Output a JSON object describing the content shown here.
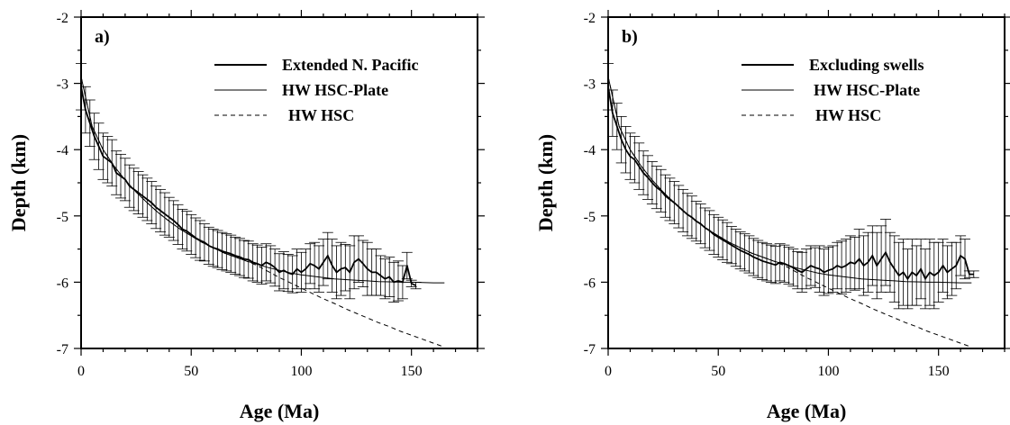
{
  "chart_data": [
    {
      "type": "line",
      "panel_label": "a)",
      "xlabel": "Age (Ma)",
      "ylabel": "Depth (km)",
      "xlim": [
        0,
        180
      ],
      "ylim": [
        -7,
        -2
      ],
      "x_ticks": [
        0,
        50,
        100,
        150
      ],
      "y_ticks": [
        -2,
        -3,
        -4,
        -5,
        -6,
        -7
      ],
      "legend_position": "top-right",
      "series": [
        {
          "name": "Extended N. Pacific",
          "style": "bold-solid-with-error-bars",
          "x": [
            0,
            2,
            4,
            6,
            8,
            10,
            12,
            14,
            16,
            18,
            20,
            22,
            24,
            26,
            28,
            30,
            32,
            34,
            36,
            38,
            40,
            42,
            44,
            46,
            48,
            50,
            52,
            54,
            56,
            58,
            60,
            62,
            64,
            66,
            68,
            70,
            72,
            74,
            76,
            78,
            80,
            82,
            84,
            86,
            88,
            90,
            92,
            94,
            96,
            98,
            100,
            102,
            104,
            106,
            108,
            110,
            112,
            114,
            116,
            118,
            120,
            122,
            124,
            126,
            128,
            130,
            132,
            134,
            136,
            138,
            140,
            142,
            144,
            146,
            148,
            150,
            152
          ],
          "y": [
            -3.05,
            -3.4,
            -3.6,
            -3.8,
            -3.95,
            -4.1,
            -4.15,
            -4.2,
            -4.35,
            -4.4,
            -4.45,
            -4.55,
            -4.6,
            -4.65,
            -4.7,
            -4.75,
            -4.8,
            -4.87,
            -4.92,
            -4.97,
            -5.02,
            -5.07,
            -5.13,
            -5.2,
            -5.23,
            -5.28,
            -5.33,
            -5.37,
            -5.4,
            -5.45,
            -5.48,
            -5.5,
            -5.53,
            -5.55,
            -5.57,
            -5.6,
            -5.62,
            -5.65,
            -5.66,
            -5.7,
            -5.72,
            -5.75,
            -5.7,
            -5.73,
            -5.78,
            -5.85,
            -5.82,
            -5.86,
            -5.88,
            -5.8,
            -5.85,
            -5.8,
            -5.72,
            -5.75,
            -5.8,
            -5.7,
            -5.6,
            -5.75,
            -5.85,
            -5.8,
            -5.78,
            -5.85,
            -5.7,
            -5.65,
            -5.72,
            -5.8,
            -5.85,
            -5.85,
            -5.9,
            -5.95,
            -5.92,
            -6.0,
            -5.98,
            -6.0,
            -5.75,
            -6.02,
            -6.05
          ],
          "error": [
            0.35,
            0.35,
            0.35,
            0.35,
            0.35,
            0.35,
            0.35,
            0.35,
            0.33,
            0.33,
            0.32,
            0.32,
            0.32,
            0.32,
            0.32,
            0.32,
            0.32,
            0.32,
            0.32,
            0.32,
            0.3,
            0.3,
            0.3,
            0.3,
            0.3,
            0.3,
            0.3,
            0.3,
            0.28,
            0.28,
            0.28,
            0.28,
            0.28,
            0.28,
            0.28,
            0.28,
            0.28,
            0.28,
            0.28,
            0.28,
            0.28,
            0.28,
            0.28,
            0.28,
            0.28,
            0.28,
            0.28,
            0.28,
            0.28,
            0.3,
            0.3,
            0.3,
            0.3,
            0.35,
            0.35,
            0.35,
            0.35,
            0.4,
            0.4,
            0.4,
            0.35,
            0.4,
            0.4,
            0.35,
            0.35,
            0.4,
            0.35,
            0.35,
            0.3,
            0.3,
            0.3,
            0.3,
            0.3,
            0.25,
            0.2,
            0.05,
            0.05
          ]
        },
        {
          "name": "HW HSC-Plate",
          "style": "thin-solid",
          "x": [
            0,
            5,
            10,
            15,
            20,
            25,
            30,
            35,
            40,
            45,
            50,
            55,
            60,
            65,
            70,
            75,
            80,
            85,
            90,
            95,
            100,
            105,
            110,
            115,
            120,
            125,
            130,
            135,
            140,
            145,
            150,
            155,
            160,
            165
          ],
          "y": [
            -2.9,
            -3.65,
            -4.0,
            -4.25,
            -4.46,
            -4.64,
            -4.8,
            -4.95,
            -5.08,
            -5.2,
            -5.3,
            -5.4,
            -5.48,
            -5.56,
            -5.62,
            -5.68,
            -5.73,
            -5.78,
            -5.82,
            -5.86,
            -5.89,
            -5.91,
            -5.93,
            -5.95,
            -5.96,
            -5.97,
            -5.98,
            -5.99,
            -5.995,
            -6.0,
            -6.0,
            -6.005,
            -6.01,
            -6.01
          ]
        },
        {
          "name": "HW HSC",
          "style": "dashed",
          "x": [
            0,
            5,
            10,
            15,
            20,
            25,
            30,
            35,
            40,
            45,
            50,
            55,
            60,
            65,
            70,
            75,
            80,
            85,
            90,
            95,
            100,
            105,
            110,
            115,
            120,
            125,
            130,
            135,
            140,
            145,
            150,
            155,
            160,
            165
          ],
          "y": [
            -2.9,
            -3.65,
            -4.0,
            -4.25,
            -4.46,
            -4.64,
            -4.8,
            -4.95,
            -5.08,
            -5.2,
            -5.3,
            -5.4,
            -5.48,
            -5.56,
            -5.62,
            -5.68,
            -5.75,
            -5.84,
            -5.93,
            -6.01,
            -6.09,
            -6.17,
            -6.25,
            -6.32,
            -6.4,
            -6.47,
            -6.54,
            -6.61,
            -6.67,
            -6.74,
            -6.8,
            -6.86,
            -6.92,
            -6.98
          ]
        }
      ]
    },
    {
      "type": "line",
      "panel_label": "b)",
      "xlabel": "Age (Ma)",
      "ylabel": "Depth (km)",
      "xlim": [
        0,
        180
      ],
      "ylim": [
        -7,
        -2
      ],
      "x_ticks": [
        0,
        50,
        100,
        150
      ],
      "y_ticks": [
        -2,
        -3,
        -4,
        -5,
        -6,
        -7
      ],
      "legend_position": "top-right",
      "series": [
        {
          "name": "Excluding swells",
          "style": "bold-solid-with-error-bars",
          "x": [
            0,
            2,
            4,
            6,
            8,
            10,
            12,
            14,
            16,
            18,
            20,
            22,
            24,
            26,
            28,
            30,
            32,
            34,
            36,
            38,
            40,
            42,
            44,
            46,
            48,
            50,
            52,
            54,
            56,
            58,
            60,
            62,
            64,
            66,
            68,
            70,
            72,
            74,
            76,
            78,
            80,
            82,
            84,
            86,
            88,
            90,
            92,
            94,
            96,
            98,
            100,
            102,
            104,
            106,
            108,
            110,
            112,
            114,
            116,
            118,
            120,
            122,
            124,
            126,
            128,
            130,
            132,
            134,
            136,
            138,
            140,
            142,
            144,
            146,
            148,
            150,
            152,
            154,
            156,
            158,
            160,
            162,
            164,
            166
          ],
          "y": [
            -3.05,
            -3.45,
            -3.65,
            -3.85,
            -4.0,
            -4.1,
            -4.15,
            -4.25,
            -4.35,
            -4.42,
            -4.5,
            -4.57,
            -4.62,
            -4.7,
            -4.75,
            -4.8,
            -4.86,
            -4.92,
            -4.98,
            -5.02,
            -5.08,
            -5.12,
            -5.18,
            -5.22,
            -5.28,
            -5.32,
            -5.36,
            -5.4,
            -5.44,
            -5.48,
            -5.52,
            -5.55,
            -5.58,
            -5.62,
            -5.65,
            -5.68,
            -5.7,
            -5.72,
            -5.74,
            -5.7,
            -5.72,
            -5.75,
            -5.78,
            -5.82,
            -5.85,
            -5.8,
            -5.75,
            -5.78,
            -5.8,
            -5.85,
            -5.82,
            -5.8,
            -5.75,
            -5.78,
            -5.75,
            -5.7,
            -5.72,
            -5.65,
            -5.75,
            -5.7,
            -5.6,
            -5.75,
            -5.65,
            -5.55,
            -5.7,
            -5.8,
            -5.9,
            -5.85,
            -5.95,
            -5.85,
            -5.9,
            -5.8,
            -5.95,
            -5.85,
            -5.9,
            -5.85,
            -5.75,
            -5.85,
            -5.8,
            -5.75,
            -5.6,
            -5.65,
            -5.88,
            -5.88
          ],
          "error": [
            0.35,
            0.35,
            0.35,
            0.35,
            0.35,
            0.35,
            0.35,
            0.35,
            0.33,
            0.33,
            0.32,
            0.32,
            0.32,
            0.32,
            0.32,
            0.32,
            0.32,
            0.32,
            0.32,
            0.32,
            0.3,
            0.3,
            0.3,
            0.3,
            0.3,
            0.3,
            0.3,
            0.3,
            0.28,
            0.28,
            0.28,
            0.28,
            0.28,
            0.28,
            0.28,
            0.28,
            0.28,
            0.28,
            0.28,
            0.28,
            0.28,
            0.28,
            0.28,
            0.28,
            0.3,
            0.3,
            0.3,
            0.3,
            0.35,
            0.35,
            0.35,
            0.35,
            0.35,
            0.4,
            0.4,
            0.4,
            0.4,
            0.45,
            0.45,
            0.45,
            0.45,
            0.5,
            0.5,
            0.5,
            0.45,
            0.5,
            0.5,
            0.5,
            0.45,
            0.5,
            0.45,
            0.45,
            0.45,
            0.5,
            0.5,
            0.45,
            0.4,
            0.4,
            0.4,
            0.35,
            0.3,
            0.3,
            0.05,
            0.05
          ]
        },
        {
          "name": "HW HSC-Plate",
          "style": "thin-solid",
          "x": [
            0,
            5,
            10,
            15,
            20,
            25,
            30,
            35,
            40,
            45,
            50,
            55,
            60,
            65,
            70,
            75,
            80,
            85,
            90,
            95,
            100,
            105,
            110,
            115,
            120,
            125,
            130,
            135,
            140,
            145,
            150,
            155,
            160,
            165
          ],
          "y": [
            -2.9,
            -3.65,
            -4.0,
            -4.25,
            -4.46,
            -4.64,
            -4.8,
            -4.95,
            -5.08,
            -5.2,
            -5.3,
            -5.4,
            -5.48,
            -5.56,
            -5.62,
            -5.68,
            -5.73,
            -5.78,
            -5.82,
            -5.86,
            -5.89,
            -5.91,
            -5.93,
            -5.95,
            -5.96,
            -5.97,
            -5.98,
            -5.99,
            -5.995,
            -6.0,
            -6.0,
            -6.005,
            -6.01,
            -6.01
          ]
        },
        {
          "name": "HW HSC",
          "style": "dashed",
          "x": [
            0,
            5,
            10,
            15,
            20,
            25,
            30,
            35,
            40,
            45,
            50,
            55,
            60,
            65,
            70,
            75,
            80,
            85,
            90,
            95,
            100,
            105,
            110,
            115,
            120,
            125,
            130,
            135,
            140,
            145,
            150,
            155,
            160,
            165
          ],
          "y": [
            -2.9,
            -3.65,
            -4.0,
            -4.25,
            -4.46,
            -4.64,
            -4.8,
            -4.95,
            -5.08,
            -5.2,
            -5.3,
            -5.4,
            -5.48,
            -5.56,
            -5.62,
            -5.68,
            -5.75,
            -5.84,
            -5.93,
            -6.01,
            -6.09,
            -6.17,
            -6.25,
            -6.32,
            -6.4,
            -6.47,
            -6.54,
            -6.61,
            -6.67,
            -6.74,
            -6.8,
            -6.86,
            -6.92,
            -6.98
          ]
        }
      ]
    }
  ]
}
